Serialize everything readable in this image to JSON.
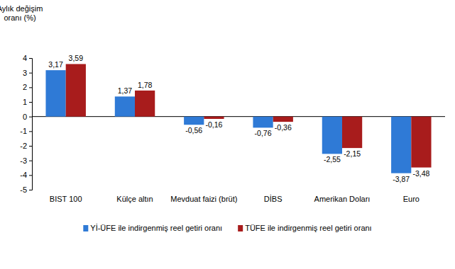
{
  "chart_data": {
    "type": "bar",
    "y_label": "Aylık değişim oranı (%)",
    "categories": [
      "BIST 100",
      "Külçe altın",
      "Mevduat faizi (brüt)",
      "DİBS",
      "Amerikan Doları",
      "Euro"
    ],
    "series": [
      {
        "name": "Yİ-ÜFE ile indirgenmiş reel getiri oranı",
        "color": "#2f7ad6",
        "values": [
          3.17,
          1.37,
          -0.56,
          -0.76,
          -2.55,
          -3.87
        ],
        "value_labels": [
          "3,17",
          "1,37",
          "-0,56",
          "-0,76",
          "-2,55",
          "-3,87"
        ]
      },
      {
        "name": "TÜFE ile indirgenmiş reel getiri oranı",
        "color": "#a81c1c",
        "values": [
          3.59,
          1.78,
          -0.16,
          -0.36,
          -2.15,
          -3.48
        ],
        "value_labels": [
          "3,59",
          "1,78",
          "-0,16",
          "-0,36",
          "-2,15",
          "-3,48"
        ]
      }
    ],
    "ylim": [
      -5,
      4
    ],
    "yticks": [
      -5,
      -4,
      -3,
      -2,
      -1,
      0,
      1,
      2,
      3,
      4
    ],
    "grid": false,
    "legend": "bottom",
    "data_labels": true
  }
}
